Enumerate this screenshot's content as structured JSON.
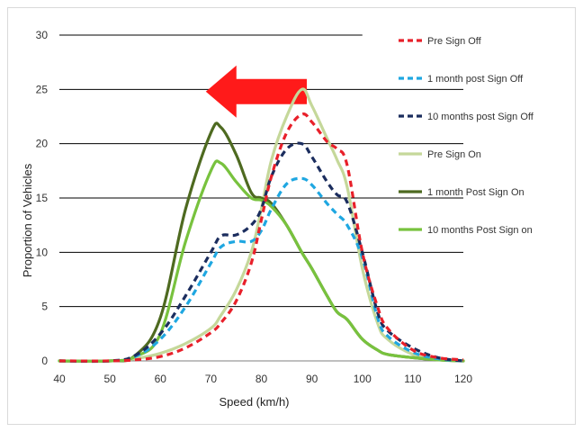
{
  "chart_data": {
    "type": "line",
    "title": "",
    "xlabel": "Speed (km/h)",
    "ylabel": "Proportion of Vehicles",
    "xlim": [
      40,
      120
    ],
    "ylim": [
      0,
      30
    ],
    "x_ticks": [
      40,
      50,
      60,
      70,
      80,
      90,
      100,
      110,
      120
    ],
    "y_ticks": [
      0,
      5,
      10,
      15,
      20,
      25,
      30
    ],
    "grid": "horizontal",
    "legend_position": "right",
    "x": [
      40,
      50,
      55,
      60,
      65,
      70,
      72,
      75,
      78,
      80,
      82,
      85,
      88,
      90,
      93,
      95,
      97,
      100,
      103,
      105,
      110,
      115,
      120
    ],
    "series": [
      {
        "name": "Pre Sign Off",
        "color": "#e8202a",
        "dash": "dash",
        "values": [
          0,
          0,
          0.1,
          0.4,
          1.2,
          2.6,
          3.5,
          5.5,
          9,
          13,
          17,
          21,
          22.7,
          22,
          20.2,
          19.5,
          18,
          10,
          5,
          3,
          1,
          0.3,
          0.1
        ]
      },
      {
        "name": "1 month post  Sign Off",
        "color": "#1fa7e1",
        "dash": "dash",
        "values": [
          0,
          0,
          0.4,
          2,
          5,
          9,
          10.5,
          11,
          11,
          12,
          14,
          16.3,
          16.8,
          16.2,
          14.5,
          13.5,
          12.5,
          9.5,
          4,
          2.3,
          0.8,
          0.2,
          0
        ]
      },
      {
        "name": "10 months post Sign Off",
        "color": "#1b2d5e",
        "dash": "dash",
        "values": [
          0,
          0,
          0.5,
          2.5,
          6,
          10,
          11.5,
          11.6,
          12.5,
          14,
          17,
          19.5,
          20,
          18.8,
          16.5,
          15.3,
          14.6,
          10,
          4.5,
          2.8,
          1.2,
          0.3,
          0
        ]
      },
      {
        "name": "Pre Sign On",
        "color": "#c5d89a",
        "dash": "solid",
        "values": [
          0,
          0,
          0.2,
          0.7,
          1.6,
          3,
          4.2,
          6.5,
          10,
          14,
          18.5,
          22.5,
          25,
          23.5,
          20.5,
          18.5,
          16,
          8.5,
          3.5,
          2,
          0.6,
          0.1,
          0
        ]
      },
      {
        "name": "1 month Post Sign On",
        "color": "#4e6a20",
        "dash": "solid",
        "values": [
          0,
          0,
          0.5,
          4,
          14,
          21,
          21.5,
          19,
          15.5,
          15,
          14.5,
          12.5,
          10,
          8.5,
          6,
          4.5,
          3.8,
          2,
          1,
          0.6,
          0.3,
          0.1,
          0
        ]
      },
      {
        "name": "10 months Post Sign on",
        "color": "#78c23e",
        "dash": "solid",
        "values": [
          0,
          0,
          0.4,
          2.5,
          11,
          17.5,
          18.2,
          16.5,
          15,
          14.8,
          14.2,
          12.5,
          10,
          8.5,
          6,
          4.5,
          3.8,
          2,
          1,
          0.6,
          0.3,
          0.1,
          0
        ]
      }
    ],
    "annotation": {
      "shape": "left-arrow",
      "color": "#ff1a1a",
      "x_from": 89,
      "x_to": 69,
      "y": 24.8
    }
  }
}
